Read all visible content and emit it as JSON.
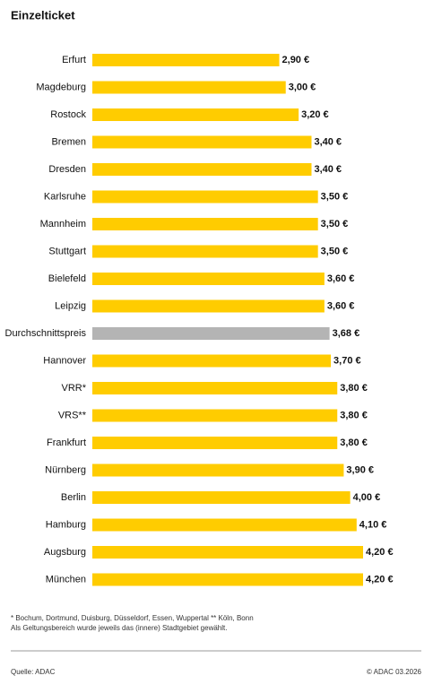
{
  "chart_data": {
    "type": "barh",
    "title": "Einzelticket",
    "categories": [
      "Erfurt",
      "Magdeburg",
      "Rostock",
      "Bremen",
      "Dresden",
      "Karlsruhe",
      "Mannheim",
      "Stuttgart",
      "Bielefeld",
      "Leipzig",
      "Durchschnittspreis",
      "Hannover",
      "VRR*",
      "VRS**",
      "Frankfurt",
      "Nürnberg",
      "Berlin",
      "Hamburg",
      "Augsburg",
      "München"
    ],
    "values": [
      2.9,
      3.0,
      3.2,
      3.4,
      3.4,
      3.5,
      3.5,
      3.5,
      3.6,
      3.6,
      3.68,
      3.7,
      3.8,
      3.8,
      3.8,
      3.9,
      4.0,
      4.1,
      4.2,
      4.2
    ],
    "value_labels": [
      "2,90 €",
      "3,00 €",
      "3,20 €",
      "3,40 €",
      "3,40 €",
      "3,50 €",
      "3,50 €",
      "3,50 €",
      "3,60 €",
      "3,60 €",
      "3,68 €",
      "3,70 €",
      "3,80 €",
      "3,80 €",
      "3,80 €",
      "3,90 €",
      "4,00 €",
      "4,10 €",
      "4,20 €",
      "4,20 €"
    ],
    "colors": [
      "#ffcc00",
      "#ffcc00",
      "#ffcc00",
      "#ffcc00",
      "#ffcc00",
      "#ffcc00",
      "#ffcc00",
      "#ffcc00",
      "#ffcc00",
      "#ffcc00",
      "#b4b4b4",
      "#ffcc00",
      "#ffcc00",
      "#ffcc00",
      "#ffcc00",
      "#ffcc00",
      "#ffcc00",
      "#ffcc00",
      "#ffcc00",
      "#ffcc00"
    ],
    "footnotes": [
      "* Bochum, Dortmund, Duisburg, Düsseldorf, Essen, Wuppertal   ** Köln, Bonn",
      "Als Geltungsbereich wurde jeweils das (innere) Stadtgebiet gewählt."
    ],
    "source": "Quelle: ADAC",
    "copyright": "© ADAC 03.2026"
  }
}
